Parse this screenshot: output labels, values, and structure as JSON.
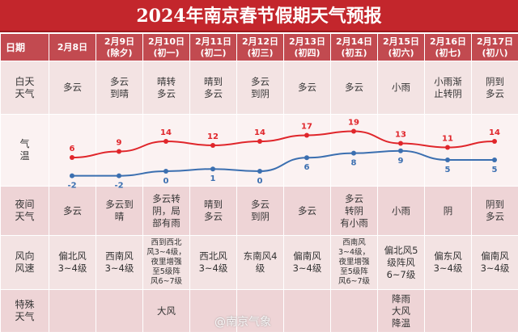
{
  "title": "2024年南京春节假期天气预报",
  "row_labels": {
    "date": "日期",
    "day": "白天\n天气",
    "temp": "气\n温",
    "night": "夜间\n天气",
    "wind": "风向\n风速",
    "special": "特殊\n天气"
  },
  "dates": [
    "2月8日",
    "2月9日\n(除夕)",
    "2月10日\n(初一)",
    "2月11日\n(初二)",
    "2月12日\n(初三)",
    "2月13日\n(初四)",
    "2月14日\n(初五)",
    "2月15日\n(初六)",
    "2月16日\n(初七)",
    "2月17日\n(初八)"
  ],
  "day_weather": [
    "多云",
    "多云\n到晴",
    "晴转\n多云",
    "晴到\n多云",
    "多云\n到阴",
    "多云",
    "多云",
    "小雨",
    "小雨渐\n止转阴",
    "阴到\n多云"
  ],
  "night_weather": [
    "多云",
    "多云到\n晴",
    "多云转\n阴，局\n部有雨",
    "晴到\n多云",
    "多云\n到阴",
    "多云",
    "多云\n转阴\n有小雨",
    "小雨",
    "阴",
    "阴到\n多云"
  ],
  "wind": [
    "偏北风\n3~4级",
    "西南风\n3~4级",
    "西到西北\n风3~4级，\n夜里增强\n至5级阵\n风6~7级",
    "西北风\n3~4级",
    "东南风4\n级",
    "偏南风\n3~4级",
    "西南风\n3~4级，\n夜里增强\n至5级阵\n风6~7级",
    "偏北风5\n级阵风\n6~7级",
    "偏东风\n3~4级",
    "偏南风\n3~4级"
  ],
  "special": [
    "",
    "",
    "大风",
    "",
    "",
    "",
    "",
    "降雨\n大风\n降温",
    "",
    ""
  ],
  "watermark": "@南京气象",
  "chart_data": {
    "type": "line",
    "categories": [
      "2月8日",
      "2月9日",
      "2月10日",
      "2月11日",
      "2月12日",
      "2月13日",
      "2月14日",
      "2月15日",
      "2月16日",
      "2月17日"
    ],
    "series": [
      {
        "values": [
          6,
          9,
          14,
          12,
          14,
          17,
          19,
          13,
          11,
          14
        ],
        "color": "#e0262b"
      },
      {
        "values": [
          -2,
          -2,
          0,
          1,
          0,
          6,
          8,
          9,
          5,
          5
        ],
        "color": "#3b6fb0"
      }
    ]
  }
}
